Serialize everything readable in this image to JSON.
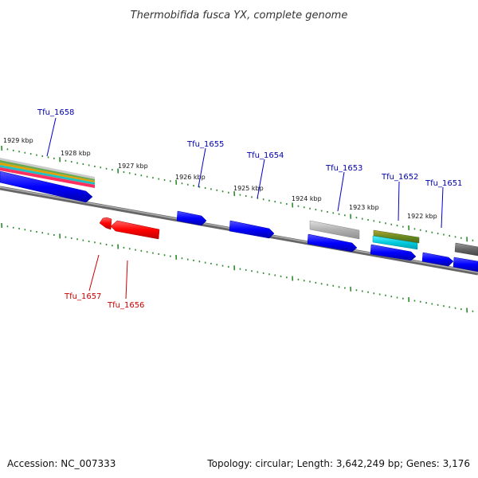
{
  "title": "Thermobifida fusca YX, complete genome",
  "footer": {
    "accession": "Accession: NC_007333",
    "topology": "Topology: circular; Length: 3,642,249 bp; Genes: 3,176"
  },
  "kbp_labels": [
    "1929 kbp",
    "1928 kbp",
    "1927 kbp",
    "1926 kbp",
    "1925 kbp",
    "1924 kbp",
    "1923 kbp",
    "1922 kbp"
  ],
  "genes_forward": [
    "Tfu_1658",
    "Tfu_1655",
    "Tfu_1654",
    "Tfu_1653",
    "Tfu_1652",
    "Tfu_1651"
  ],
  "genes_reverse": [
    "Tfu_1657",
    "Tfu_1656"
  ],
  "colors": {
    "forward_gene": "#0000ff",
    "reverse_gene": "#ff0000",
    "tick": "#2e8b2e",
    "backbone": "#808080"
  }
}
